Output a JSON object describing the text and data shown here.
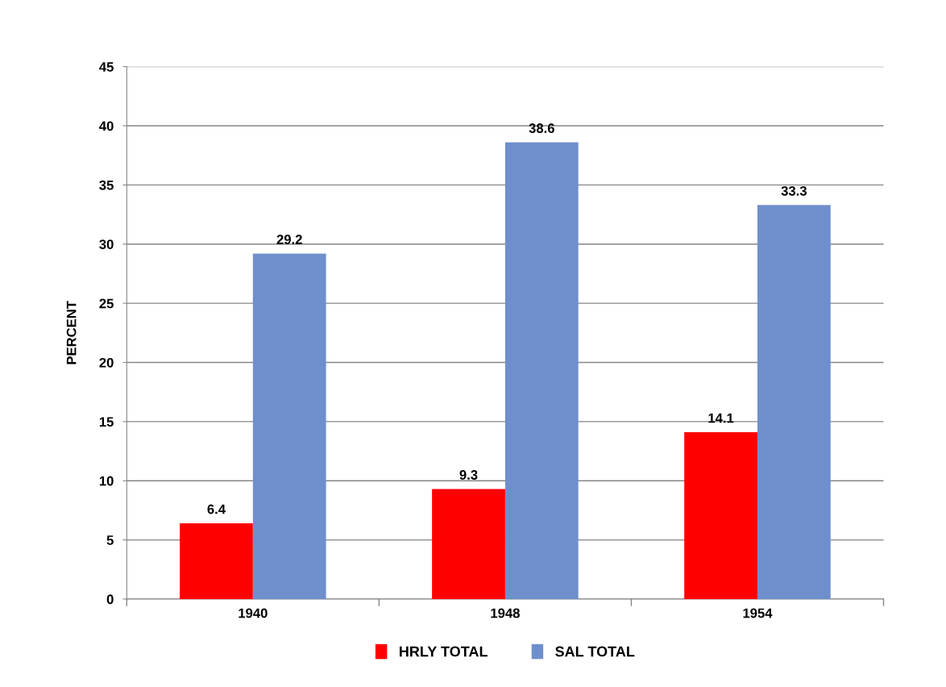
{
  "chart_data": {
    "type": "bar",
    "ylabel": "PERCENT",
    "categories": [
      "1940",
      "1948",
      "1954"
    ],
    "series": [
      {
        "name": "HRLY TOTAL",
        "color": "#ff0000",
        "values": [
          6.4,
          9.3,
          14.1
        ]
      },
      {
        "name": "SAL TOTAL",
        "color": "#6f8fcc",
        "values": [
          29.2,
          38.6,
          33.3
        ]
      }
    ],
    "ylim": [
      0,
      45
    ],
    "yticks": [
      0,
      5,
      10,
      15,
      20,
      25,
      30,
      35,
      40,
      45
    ],
    "grid": "y",
    "legend": "bottom",
    "data_labels": true
  }
}
